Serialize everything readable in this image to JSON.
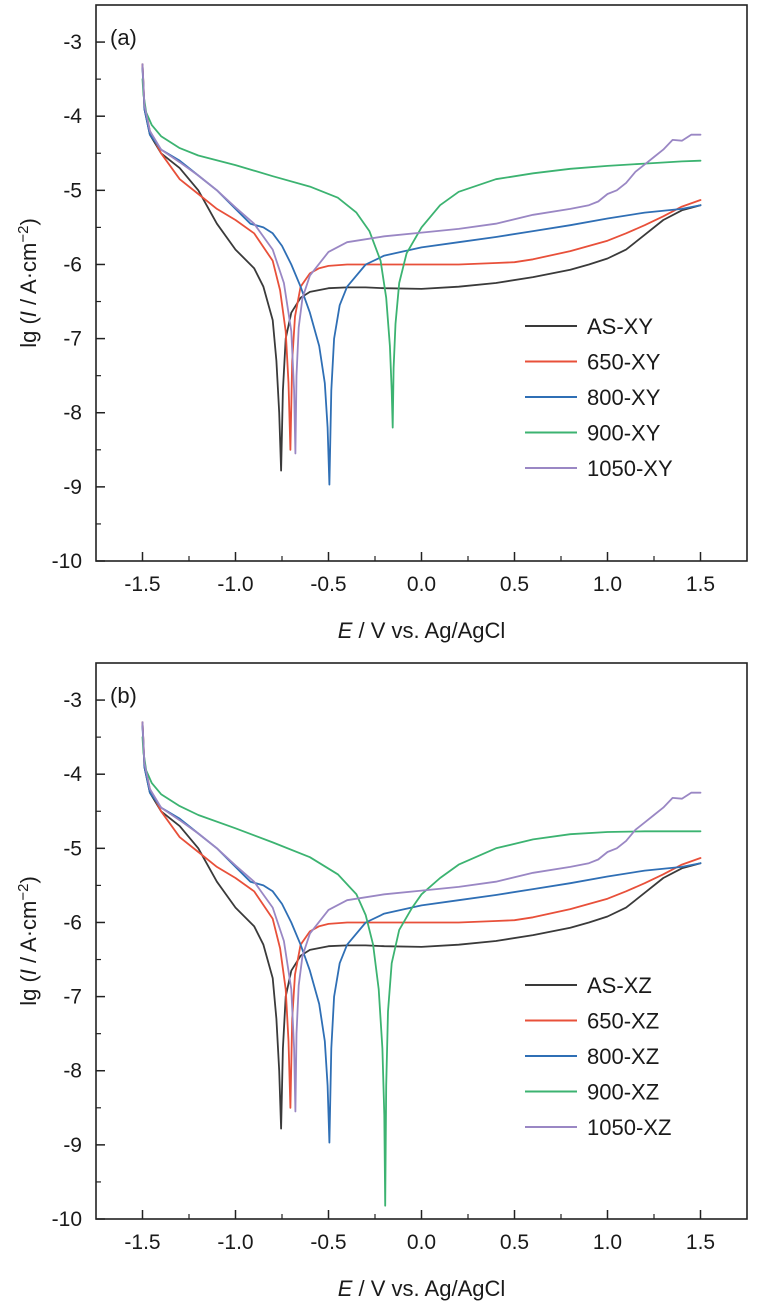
{
  "chart_data": [
    {
      "type": "line",
      "panel_label": "(a)",
      "xlabel": {
        "italic": "E",
        "rest": " / V vs. Ag/AgCl"
      },
      "ylabel": {
        "prefix": "lg (",
        "italic": "I",
        "rest": " / A·cm",
        "sup": "−2",
        "suffix": ")"
      },
      "xlim": [
        -1.75,
        1.75
      ],
      "ylim": [
        -10,
        -2.5
      ],
      "x_ticks": [
        -1.5,
        -1.0,
        -0.5,
        0.0,
        0.5,
        1.0,
        1.5
      ],
      "x_tick_labels": [
        "-1.5",
        "-1.0",
        "-0.5",
        "0.0",
        "0.5",
        "1.0",
        "1.5"
      ],
      "y_ticks": [
        -10,
        -9,
        -8,
        -7,
        -6,
        -5,
        -4,
        -3
      ],
      "y_tick_labels": [
        "-10",
        "-9",
        "-8",
        "-7",
        "-6",
        "-5",
        "-4",
        "-3"
      ],
      "grid": false,
      "legend_position": "lower-right",
      "series": [
        {
          "name": "AS-XY",
          "color": "#3a3a3a",
          "x": [
            -1.5,
            -1.49,
            -1.46,
            -1.4,
            -1.3,
            -1.2,
            -1.1,
            -1.0,
            -0.9,
            -0.85,
            -0.8,
            -0.78,
            -0.765,
            -0.755,
            -0.745,
            -0.73,
            -0.7,
            -0.65,
            -0.6,
            -0.5,
            -0.4,
            -0.3,
            -0.2,
            0.0,
            0.2,
            0.4,
            0.6,
            0.8,
            0.9,
            1.0,
            1.1,
            1.2,
            1.3,
            1.4,
            1.5
          ],
          "y": [
            -3.3,
            -3.9,
            -4.25,
            -4.5,
            -4.7,
            -5.0,
            -5.45,
            -5.8,
            -6.05,
            -6.3,
            -6.75,
            -7.3,
            -8.0,
            -8.78,
            -7.7,
            -7.0,
            -6.65,
            -6.45,
            -6.37,
            -6.32,
            -6.31,
            -6.31,
            -6.32,
            -6.33,
            -6.3,
            -6.25,
            -6.17,
            -6.07,
            -6.0,
            -5.92,
            -5.8,
            -5.6,
            -5.4,
            -5.27,
            -5.2
          ]
        },
        {
          "name": "650-XY",
          "color": "#e8503a",
          "x": [
            -1.5,
            -1.49,
            -1.46,
            -1.4,
            -1.3,
            -1.2,
            -1.1,
            -1.0,
            -0.9,
            -0.8,
            -0.76,
            -0.73,
            -0.715,
            -0.705,
            -0.695,
            -0.68,
            -0.65,
            -0.6,
            -0.55,
            -0.5,
            -0.4,
            -0.2,
            0.0,
            0.2,
            0.4,
            0.5,
            0.6,
            0.8,
            1.0,
            1.1,
            1.2,
            1.3,
            1.4,
            1.5
          ],
          "y": [
            -3.3,
            -3.85,
            -4.2,
            -4.5,
            -4.85,
            -5.05,
            -5.25,
            -5.4,
            -5.58,
            -5.95,
            -6.35,
            -6.9,
            -7.6,
            -8.5,
            -7.3,
            -6.7,
            -6.3,
            -6.12,
            -6.05,
            -6.02,
            -6.0,
            -6.0,
            -6.0,
            -6.0,
            -5.98,
            -5.97,
            -5.93,
            -5.82,
            -5.68,
            -5.58,
            -5.47,
            -5.35,
            -5.22,
            -5.13
          ]
        },
        {
          "name": "800-XY",
          "color": "#2f6fb5",
          "x": [
            -1.5,
            -1.49,
            -1.46,
            -1.4,
            -1.3,
            -1.2,
            -1.1,
            -1.0,
            -0.92,
            -0.85,
            -0.8,
            -0.75,
            -0.7,
            -0.65,
            -0.6,
            -0.55,
            -0.52,
            -0.505,
            -0.495,
            -0.485,
            -0.47,
            -0.44,
            -0.4,
            -0.3,
            -0.2,
            0.0,
            0.2,
            0.4,
            0.6,
            0.8,
            1.0,
            1.2,
            1.4,
            1.5
          ],
          "y": [
            -3.35,
            -3.9,
            -4.25,
            -4.45,
            -4.6,
            -4.8,
            -5.0,
            -5.25,
            -5.45,
            -5.5,
            -5.58,
            -5.75,
            -6.0,
            -6.3,
            -6.65,
            -7.1,
            -7.6,
            -8.2,
            -8.97,
            -7.7,
            -7.0,
            -6.55,
            -6.3,
            -6.0,
            -5.88,
            -5.77,
            -5.7,
            -5.63,
            -5.55,
            -5.47,
            -5.38,
            -5.3,
            -5.25,
            -5.2
          ]
        },
        {
          "name": "900-XY",
          "color": "#3cb371",
          "x": [
            -1.5,
            -1.495,
            -1.48,
            -1.45,
            -1.4,
            -1.3,
            -1.2,
            -1.0,
            -0.8,
            -0.6,
            -0.45,
            -0.35,
            -0.28,
            -0.22,
            -0.19,
            -0.17,
            -0.16,
            -0.155,
            -0.15,
            -0.14,
            -0.12,
            -0.08,
            0.0,
            0.1,
            0.2,
            0.4,
            0.6,
            0.8,
            1.0,
            1.2,
            1.4,
            1.5
          ],
          "y": [
            -3.5,
            -3.7,
            -3.95,
            -4.12,
            -4.27,
            -4.43,
            -4.53,
            -4.66,
            -4.81,
            -4.95,
            -5.1,
            -5.3,
            -5.55,
            -5.95,
            -6.45,
            -7.1,
            -7.7,
            -8.2,
            -7.4,
            -6.8,
            -6.25,
            -5.85,
            -5.5,
            -5.2,
            -5.02,
            -4.85,
            -4.77,
            -4.71,
            -4.67,
            -4.64,
            -4.61,
            -4.6
          ]
        },
        {
          "name": "1050-XY",
          "color": "#9a87c4",
          "x": [
            -1.5,
            -1.49,
            -1.46,
            -1.4,
            -1.3,
            -1.2,
            -1.1,
            -1.0,
            -0.9,
            -0.8,
            -0.74,
            -0.7,
            -0.685,
            -0.678,
            -0.672,
            -0.66,
            -0.64,
            -0.6,
            -0.5,
            -0.4,
            -0.2,
            0.0,
            0.2,
            0.4,
            0.6,
            0.8,
            0.9,
            0.95,
            1.0,
            1.05,
            1.1,
            1.15,
            1.2,
            1.25,
            1.3,
            1.35,
            1.4,
            1.45,
            1.5
          ],
          "y": [
            -3.3,
            -3.85,
            -4.2,
            -4.45,
            -4.62,
            -4.8,
            -5.0,
            -5.23,
            -5.45,
            -5.8,
            -6.25,
            -6.9,
            -7.7,
            -8.55,
            -7.5,
            -6.85,
            -6.45,
            -6.15,
            -5.83,
            -5.7,
            -5.62,
            -5.57,
            -5.52,
            -5.45,
            -5.33,
            -5.25,
            -5.2,
            -5.15,
            -5.05,
            -5.0,
            -4.9,
            -4.75,
            -4.65,
            -4.55,
            -4.45,
            -4.32,
            -4.33,
            -4.25,
            -4.25
          ]
        }
      ]
    },
    {
      "type": "line",
      "panel_label": "(b)",
      "xlabel": {
        "italic": "E",
        "rest": " / V vs. Ag/AgCl"
      },
      "ylabel": {
        "prefix": "lg (",
        "italic": "I",
        "rest": " / A·cm",
        "sup": "−2",
        "suffix": ")"
      },
      "xlim": [
        -1.75,
        1.75
      ],
      "ylim": [
        -10,
        -2.5
      ],
      "x_ticks": [
        -1.5,
        -1.0,
        -0.5,
        0.0,
        0.5,
        1.0,
        1.5
      ],
      "x_tick_labels": [
        "-1.5",
        "-1.0",
        "-0.5",
        "0.0",
        "0.5",
        "1.0",
        "1.5"
      ],
      "y_ticks": [
        -10,
        -9,
        -8,
        -7,
        -6,
        -5,
        -4,
        -3
      ],
      "y_tick_labels": [
        "-10",
        "-9",
        "-8",
        "-7",
        "-6",
        "-5",
        "-4",
        "-3"
      ],
      "grid": false,
      "legend_position": "lower-right",
      "series": [
        {
          "name": "AS-XZ",
          "color": "#3a3a3a",
          "x": [
            -1.5,
            -1.49,
            -1.46,
            -1.4,
            -1.3,
            -1.2,
            -1.1,
            -1.0,
            -0.9,
            -0.85,
            -0.8,
            -0.78,
            -0.765,
            -0.755,
            -0.745,
            -0.73,
            -0.7,
            -0.65,
            -0.6,
            -0.5,
            -0.4,
            -0.3,
            -0.2,
            0.0,
            0.2,
            0.4,
            0.6,
            0.8,
            0.9,
            1.0,
            1.1,
            1.2,
            1.3,
            1.4,
            1.5
          ],
          "y": [
            -3.3,
            -3.9,
            -4.25,
            -4.5,
            -4.7,
            -5.0,
            -5.45,
            -5.8,
            -6.05,
            -6.3,
            -6.75,
            -7.3,
            -8.0,
            -8.78,
            -7.7,
            -7.0,
            -6.65,
            -6.45,
            -6.37,
            -6.32,
            -6.31,
            -6.31,
            -6.32,
            -6.33,
            -6.3,
            -6.25,
            -6.17,
            -6.07,
            -6.0,
            -5.92,
            -5.8,
            -5.6,
            -5.4,
            -5.27,
            -5.2
          ]
        },
        {
          "name": "650-XZ",
          "color": "#e8503a",
          "x": [
            -1.5,
            -1.49,
            -1.46,
            -1.4,
            -1.3,
            -1.2,
            -1.1,
            -1.0,
            -0.9,
            -0.8,
            -0.76,
            -0.73,
            -0.715,
            -0.705,
            -0.695,
            -0.68,
            -0.65,
            -0.6,
            -0.55,
            -0.5,
            -0.4,
            -0.2,
            0.0,
            0.2,
            0.4,
            0.5,
            0.6,
            0.8,
            1.0,
            1.1,
            1.2,
            1.3,
            1.4,
            1.5
          ],
          "y": [
            -3.3,
            -3.85,
            -4.2,
            -4.5,
            -4.85,
            -5.05,
            -5.25,
            -5.4,
            -5.58,
            -5.95,
            -6.35,
            -6.9,
            -7.6,
            -8.5,
            -7.3,
            -6.7,
            -6.3,
            -6.12,
            -6.05,
            -6.02,
            -6.0,
            -6.0,
            -6.0,
            -6.0,
            -5.98,
            -5.97,
            -5.93,
            -5.82,
            -5.68,
            -5.58,
            -5.47,
            -5.35,
            -5.22,
            -5.13
          ]
        },
        {
          "name": "800-XZ",
          "color": "#2f6fb5",
          "x": [
            -1.5,
            -1.49,
            -1.46,
            -1.4,
            -1.3,
            -1.2,
            -1.1,
            -1.0,
            -0.92,
            -0.85,
            -0.8,
            -0.75,
            -0.7,
            -0.65,
            -0.6,
            -0.55,
            -0.52,
            -0.505,
            -0.495,
            -0.485,
            -0.47,
            -0.44,
            -0.4,
            -0.3,
            -0.2,
            0.0,
            0.2,
            0.4,
            0.6,
            0.8,
            1.0,
            1.2,
            1.4,
            1.5
          ],
          "y": [
            -3.35,
            -3.9,
            -4.25,
            -4.45,
            -4.6,
            -4.8,
            -5.0,
            -5.25,
            -5.45,
            -5.5,
            -5.58,
            -5.75,
            -6.0,
            -6.3,
            -6.65,
            -7.1,
            -7.6,
            -8.2,
            -8.97,
            -7.7,
            -7.0,
            -6.55,
            -6.3,
            -6.0,
            -5.88,
            -5.77,
            -5.7,
            -5.63,
            -5.55,
            -5.47,
            -5.38,
            -5.3,
            -5.25,
            -5.2
          ]
        },
        {
          "name": "900-XZ",
          "color": "#3cb371",
          "x": [
            -1.5,
            -1.495,
            -1.48,
            -1.45,
            -1.4,
            -1.3,
            -1.2,
            -1.0,
            -0.8,
            -0.6,
            -0.45,
            -0.35,
            -0.3,
            -0.26,
            -0.23,
            -0.21,
            -0.2,
            -0.195,
            -0.19,
            -0.18,
            -0.16,
            -0.12,
            -0.05,
            0.0,
            0.1,
            0.2,
            0.4,
            0.6,
            0.8,
            1.0,
            1.2,
            1.4,
            1.5
          ],
          "y": [
            -3.5,
            -3.7,
            -3.95,
            -4.12,
            -4.27,
            -4.43,
            -4.55,
            -4.73,
            -4.92,
            -5.12,
            -5.35,
            -5.62,
            -5.9,
            -6.3,
            -6.9,
            -7.7,
            -8.6,
            -9.82,
            -8.2,
            -7.2,
            -6.55,
            -6.1,
            -5.8,
            -5.62,
            -5.4,
            -5.22,
            -5.0,
            -4.88,
            -4.81,
            -4.78,
            -4.77,
            -4.77,
            -4.77
          ]
        },
        {
          "name": "1050-XZ",
          "color": "#9a87c4",
          "x": [
            -1.5,
            -1.49,
            -1.46,
            -1.4,
            -1.3,
            -1.2,
            -1.1,
            -1.0,
            -0.9,
            -0.8,
            -0.74,
            -0.7,
            -0.685,
            -0.678,
            -0.672,
            -0.66,
            -0.64,
            -0.6,
            -0.5,
            -0.4,
            -0.2,
            0.0,
            0.2,
            0.4,
            0.6,
            0.8,
            0.9,
            0.95,
            1.0,
            1.05,
            1.1,
            1.15,
            1.2,
            1.25,
            1.3,
            1.35,
            1.4,
            1.45,
            1.5
          ],
          "y": [
            -3.3,
            -3.85,
            -4.2,
            -4.45,
            -4.62,
            -4.8,
            -5.0,
            -5.23,
            -5.45,
            -5.8,
            -6.25,
            -6.9,
            -7.7,
            -8.55,
            -7.5,
            -6.85,
            -6.45,
            -6.15,
            -5.83,
            -5.7,
            -5.62,
            -5.57,
            -5.52,
            -5.45,
            -5.33,
            -5.25,
            -5.2,
            -5.15,
            -5.05,
            -5.0,
            -4.9,
            -4.75,
            -4.65,
            -4.55,
            -4.45,
            -4.32,
            -4.33,
            -4.25,
            -4.25
          ]
        }
      ]
    }
  ]
}
